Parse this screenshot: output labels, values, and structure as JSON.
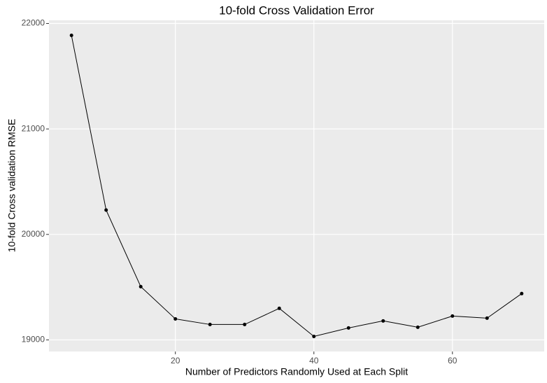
{
  "chart_data": {
    "type": "line",
    "title": "10-fold Cross Validation Error",
    "x_label": "Number of Predictors Randomly Used at Each Split",
    "y_label": "10-fold Cross validation RMSE",
    "x": [
      5,
      10,
      15,
      20,
      25,
      30,
      35,
      40,
      45,
      50,
      55,
      60,
      65,
      70
    ],
    "series": [
      {
        "color": "#000000",
        "values": [
          21887,
          20231,
          19505,
          19199,
          19146,
          19146,
          19299,
          19033,
          19113,
          19180,
          19120,
          19226,
          19206,
          19439
        ]
      }
    ],
    "xlim": [
      1.75,
      73.25
    ],
    "xticks": [
      20,
      40,
      60
    ],
    "ylim": [
      18890,
      22030
    ],
    "yticks": [
      19000,
      20000,
      21000,
      22000
    ],
    "grid": true
  }
}
